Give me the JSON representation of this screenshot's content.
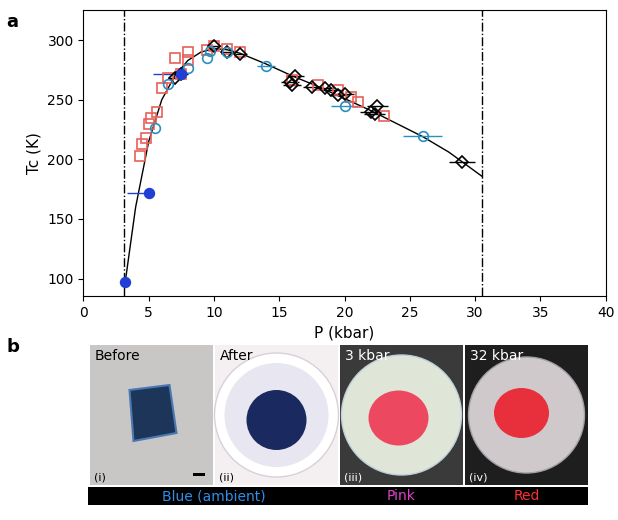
{
  "chart_data": {
    "type": "scatter",
    "panel_label": "a",
    "x_label": "P (kbar)",
    "y_label": "Tc (K)",
    "xlim": [
      0,
      40
    ],
    "xticks": [
      0,
      5,
      10,
      15,
      20,
      25,
      30,
      35,
      40
    ],
    "ylim": [
      85,
      325
    ],
    "yticks": [
      100,
      150,
      200,
      250,
      300
    ],
    "grid": false,
    "vlines": [
      3.1,
      30.5
    ],
    "series": [
      {
        "color": "#e8605a",
        "marker": "square",
        "filled": false,
        "x": [
          4.3,
          4.5,
          4.8,
          5.0,
          5.2,
          5.6,
          6.0,
          6.5,
          7.0,
          7.5,
          8.0,
          8.0,
          9.5,
          10.0,
          11.0,
          12.0,
          16.0,
          18.0,
          19.5,
          20.5,
          21.0,
          23.0
        ],
        "values": [
          203,
          213,
          218,
          230,
          235,
          240,
          260,
          268,
          285,
          272,
          290,
          283,
          292,
          295,
          293,
          290,
          267,
          262,
          258,
          252,
          248,
          236
        ],
        "xerr_minus": [
          0,
          0,
          0,
          0,
          0,
          0,
          0,
          0,
          0,
          0,
          0,
          0,
          0,
          0,
          0,
          0,
          0,
          0,
          0,
          0,
          0,
          0
        ],
        "xerr_plus": [
          0,
          0,
          0,
          0,
          0,
          0,
          0,
          0,
          0,
          0,
          0,
          0,
          0,
          0,
          0,
          0,
          0,
          0,
          0,
          0,
          0,
          0
        ]
      },
      {
        "color": "#000000",
        "marker": "diamond",
        "filled": false,
        "x": [
          7.0,
          7.5,
          10.0,
          11.0,
          12.0,
          15.8,
          16.0,
          16.2,
          17.5,
          18.5,
          19.0,
          19.5,
          20.0,
          22.0,
          22.3,
          22.5,
          29.0
        ],
        "values": [
          268,
          272,
          295,
          290,
          288,
          265,
          262,
          270,
          261,
          260,
          258,
          254,
          255,
          240,
          238,
          245,
          198
        ],
        "xerr_minus": [
          0.5,
          0.5,
          0.5,
          0.5,
          0.5,
          0.7,
          0.7,
          0.7,
          0.7,
          0.7,
          0.7,
          0.7,
          0.7,
          0.8,
          0.8,
          0.8,
          1.0
        ],
        "xerr_plus": [
          0.5,
          0.5,
          0.5,
          0.5,
          0.5,
          0.7,
          0.7,
          0.7,
          0.7,
          0.7,
          0.7,
          0.7,
          0.7,
          0.8,
          0.8,
          0.8,
          1.0
        ]
      },
      {
        "color": "#2a8fbd",
        "marker": "circle",
        "filled": false,
        "x": [
          5.5,
          6.5,
          8.0,
          9.5,
          9.7,
          11.0,
          14.0,
          20.0,
          26.0
        ],
        "values": [
          226,
          263,
          277,
          285,
          291,
          290,
          278,
          245,
          220
        ],
        "xerr_minus": [
          0,
          0,
          0,
          0,
          0,
          0,
          0.7,
          1.0,
          1.5
        ],
        "xerr_plus": [
          0,
          0,
          0,
          0,
          0,
          0,
          0.7,
          1.0,
          1.5
        ]
      },
      {
        "color": "#1f3fd6",
        "marker": "circle",
        "filled": true,
        "x": [
          3.2,
          5.0,
          7.5
        ],
        "values": [
          97,
          172,
          272
        ],
        "xerr_minus": [
          0,
          1.7,
          2.2
        ],
        "xerr_plus": [
          0,
          0,
          0
        ]
      }
    ],
    "fit": {
      "color": "#000000",
      "line_style": "solid",
      "x": [
        3.2,
        4.0,
        5.0,
        6.0,
        7.0,
        8.0,
        9.0,
        10.0,
        11.0,
        12.0,
        14.0,
        16.0,
        18.0,
        20.0,
        22.0,
        24.0,
        26.0,
        28.0,
        30.0,
        30.5
      ],
      "values": [
        97,
        160,
        215,
        250,
        270,
        283,
        290,
        293,
        292,
        289,
        280,
        270,
        261,
        251,
        241,
        230,
        219,
        206,
        190,
        186
      ]
    }
  },
  "panel_b": {
    "panel_label": "b",
    "photos": [
      {
        "caption": "Before",
        "index": "(i)"
      },
      {
        "caption": "After",
        "index": "(ii)"
      },
      {
        "caption": "3 kbar",
        "index": "(iii)"
      },
      {
        "caption": "32 kbar",
        "index": "(iv)"
      }
    ],
    "colour_bar": [
      {
        "text": "Blue (ambient)",
        "color": "#2f8fe8"
      },
      {
        "text": "Pink",
        "color": "#e040c8"
      },
      {
        "text": "Red",
        "color": "#ff3030"
      }
    ]
  }
}
